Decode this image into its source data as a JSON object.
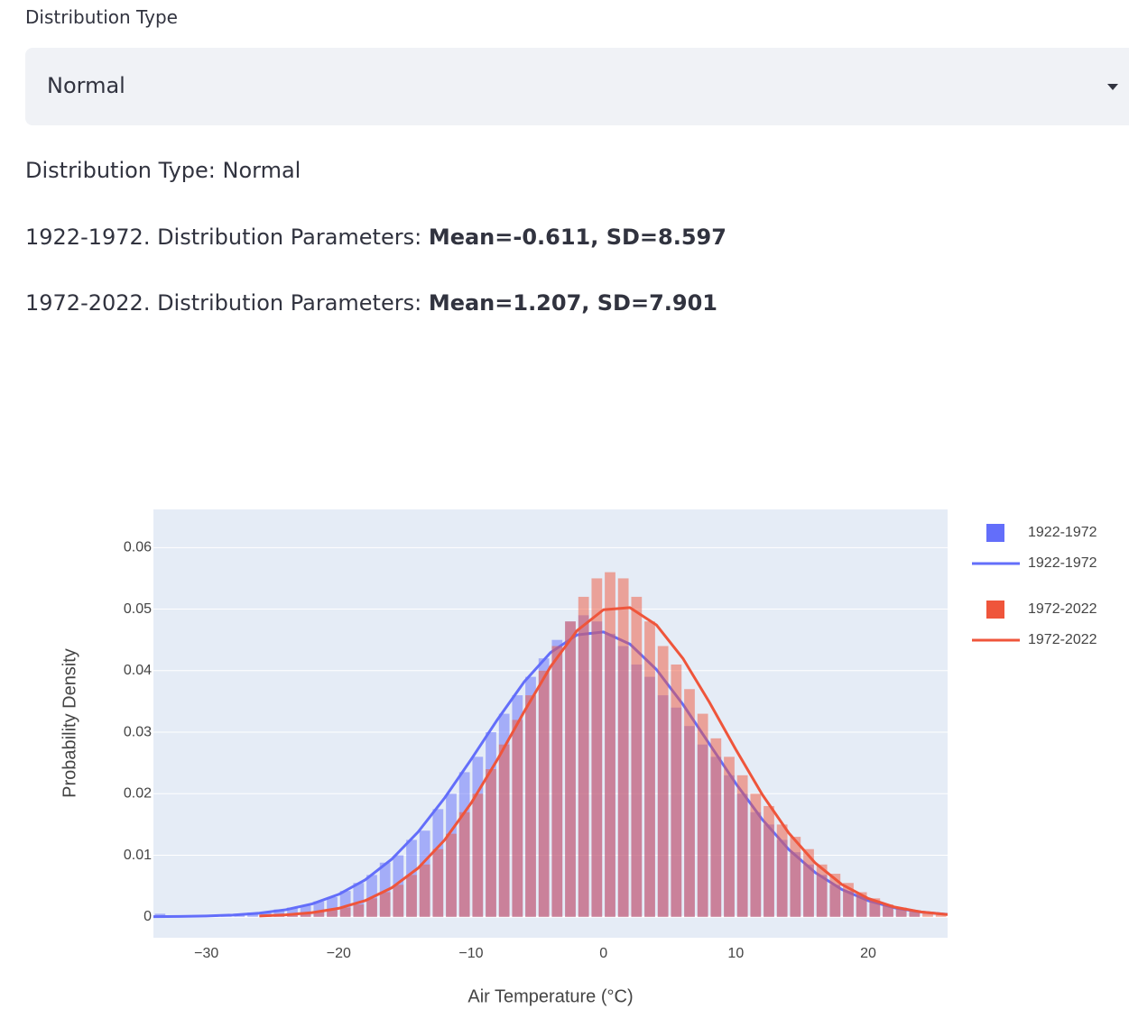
{
  "selector": {
    "label": "Distribution Type",
    "value": "Normal"
  },
  "summary": {
    "type_line": "Distribution Type: Normal",
    "params": [
      {
        "prefix": "1922-1972. Distribution Parameters: ",
        "bold": "Mean=-0.611, SD=8.597"
      },
      {
        "prefix": "1972-2022. Distribution Parameters: ",
        "bold": "Mean=1.207, SD=7.901"
      }
    ]
  },
  "chart_data": {
    "type": "histogram",
    "x_label": "Air Temperature (°C)",
    "y_label": "Probability Density",
    "xlim": [
      -34,
      26
    ],
    "ylim": [
      -0.0034,
      0.0662
    ],
    "xticks": [
      {
        "value": -30,
        "label": "−30"
      },
      {
        "value": -20,
        "label": "−20"
      },
      {
        "value": -10,
        "label": "−10"
      },
      0,
      10,
      20
    ],
    "yticks": [
      0,
      0.01,
      0.02,
      0.03,
      0.04,
      0.05,
      0.06
    ],
    "grid": true,
    "legend": "right",
    "series": [
      {
        "name": "1922-1972",
        "type": "histogram",
        "color": "#636efa",
        "bins": [
          -34,
          -33,
          -32,
          -31,
          -30,
          -29,
          -28,
          -27,
          -26,
          -25,
          -24,
          -23,
          -22,
          -21,
          -20,
          -19,
          -18,
          -17,
          -16,
          -15,
          -14,
          -13,
          -12,
          -11,
          -10,
          -9,
          -8,
          -7,
          -6,
          -5,
          -4,
          -3,
          -2,
          -1,
          0,
          1,
          2,
          3,
          4,
          5,
          6,
          7,
          8,
          9,
          10,
          11,
          12,
          13,
          14,
          15,
          16,
          17,
          18,
          19,
          20,
          21,
          22,
          23,
          24
        ],
        "values": [
          0.0005,
          0.0001,
          0.0001,
          0.0002,
          0.0002,
          0.0003,
          0.0005,
          0.0007,
          0.0008,
          0.0012,
          0.0015,
          0.0018,
          0.0025,
          0.0032,
          0.0042,
          0.0055,
          0.0068,
          0.0088,
          0.01,
          0.0125,
          0.014,
          0.0175,
          0.02,
          0.0235,
          0.026,
          0.03,
          0.033,
          0.036,
          0.039,
          0.042,
          0.045,
          0.048,
          0.049,
          0.048,
          0.046,
          0.044,
          0.041,
          0.039,
          0.036,
          0.034,
          0.031,
          0.028,
          0.026,
          0.023,
          0.02,
          0.017,
          0.015,
          0.0125,
          0.0105,
          0.0085,
          0.0068,
          0.0052,
          0.0042,
          0.0032,
          0.0025,
          0.0018,
          0.0012,
          0.0008
        ]
      },
      {
        "name": "1922-1972",
        "type": "line",
        "color": "#636efa",
        "x": [
          -34,
          -32,
          -30,
          -28,
          -26,
          -24,
          -22,
          -20,
          -18,
          -16,
          -14,
          -12,
          -10,
          -8,
          -6,
          -4,
          -2,
          0,
          2,
          4,
          6,
          8,
          10,
          12,
          14,
          16,
          18,
          20,
          22,
          24,
          26
        ],
        "values": [
          2e-05,
          6e-05,
          0.00013,
          0.00029,
          0.00059,
          0.00115,
          0.0021,
          0.00365,
          0.006,
          0.00935,
          0.0138,
          0.01931,
          0.02557,
          0.03208,
          0.03815,
          0.04294,
          0.04581,
          0.04629,
          0.04432,
          0.04019,
          0.03453,
          0.02809,
          0.02166,
          0.01582,
          0.01095,
          0.00718,
          0.00446,
          0.00262,
          0.00146,
          0.00077,
          0.00039
        ]
      },
      {
        "name": "1972-2022",
        "type": "histogram",
        "color": "#ef553b",
        "bins": [
          -26,
          -25,
          -24,
          -23,
          -22,
          -21,
          -20,
          -19,
          -18,
          -17,
          -16,
          -15,
          -14,
          -13,
          -12,
          -11,
          -10,
          -9,
          -8,
          -7,
          -6,
          -5,
          -4,
          -3,
          -2,
          -1,
          0,
          1,
          2,
          3,
          4,
          5,
          6,
          7,
          8,
          9,
          10,
          11,
          12,
          13,
          14,
          15,
          16,
          17,
          18,
          19,
          20,
          21,
          22,
          23,
          24,
          25,
          26
        ],
        "values": [
          0.0002,
          0.0003,
          0.0004,
          0.0006,
          0.0008,
          0.0011,
          0.0015,
          0.002,
          0.003,
          0.004,
          0.0052,
          0.0068,
          0.0085,
          0.011,
          0.0135,
          0.017,
          0.02,
          0.024,
          0.028,
          0.032,
          0.036,
          0.04,
          0.044,
          0.048,
          0.052,
          0.055,
          0.056,
          0.055,
          0.052,
          0.048,
          0.044,
          0.041,
          0.037,
          0.033,
          0.029,
          0.026,
          0.023,
          0.02,
          0.018,
          0.015,
          0.013,
          0.011,
          0.0085,
          0.007,
          0.0055,
          0.004,
          0.003,
          0.002,
          0.0015,
          0.001,
          0.0007,
          0.0005
        ]
      },
      {
        "name": "1972-2022",
        "type": "line",
        "color": "#ef553b",
        "x": [
          -26,
          -24,
          -22,
          -20,
          -18,
          -16,
          -14,
          -12,
          -10,
          -8,
          -6,
          -4,
          -2,
          0,
          2,
          4,
          6,
          8,
          10,
          12,
          14,
          16,
          18,
          20,
          22,
          24,
          26
        ],
        "values": [
          0.00013,
          0.00031,
          0.00068,
          0.00138,
          0.00263,
          0.00471,
          0.00792,
          0.01248,
          0.01846,
          0.0256,
          0.0333,
          0.04064,
          0.0465,
          0.0499,
          0.05024,
          0.04743,
          0.042,
          0.03488,
          0.02719,
          0.01986,
          0.01361,
          0.00875,
          0.00527,
          0.00298,
          0.00158,
          0.00079,
          0.00037
        ]
      }
    ]
  }
}
